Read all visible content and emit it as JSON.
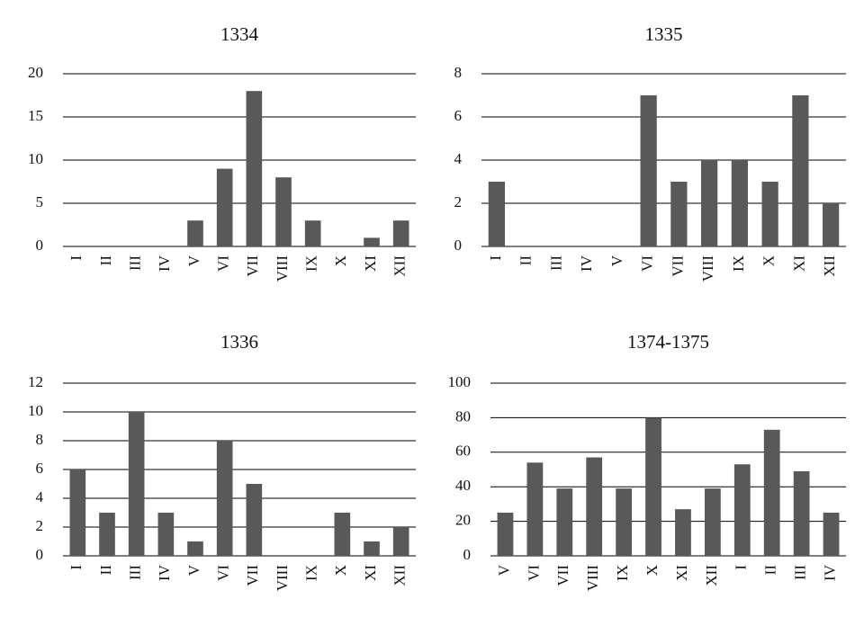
{
  "chart_data": [
    {
      "type": "bar",
      "title": "1334",
      "categories": [
        "I",
        "II",
        "III",
        "IV",
        "V",
        "VI",
        "VII",
        "VIII",
        "IX",
        "X",
        "XI",
        "XII"
      ],
      "values": [
        0,
        0,
        0,
        0,
        3,
        9,
        18,
        8,
        3,
        0,
        1,
        3
      ],
      "color": "#595959",
      "ylim": [
        0,
        20
      ],
      "yticks": [
        0,
        5,
        10,
        15,
        20
      ],
      "grid": true
    },
    {
      "type": "bar",
      "title": "1335",
      "categories": [
        "I",
        "II",
        "III",
        "IV",
        "V",
        "VI",
        "VII",
        "VIII",
        "IX",
        "X",
        "XI",
        "XII"
      ],
      "values": [
        3,
        0,
        0,
        0,
        0,
        7,
        3,
        4,
        4,
        3,
        7,
        2
      ],
      "color": "#595959",
      "ylim": [
        0,
        8
      ],
      "yticks": [
        0,
        2,
        4,
        6,
        8
      ],
      "grid": true
    },
    {
      "type": "bar",
      "title": "1336",
      "categories": [
        "I",
        "II",
        "III",
        "IV",
        "V",
        "VI",
        "VII",
        "VIII",
        "IX",
        "X",
        "XI",
        "XII"
      ],
      "values": [
        6,
        3,
        10,
        3,
        1,
        8,
        5,
        0,
        0,
        3,
        1,
        2
      ],
      "color": "#595959",
      "ylim": [
        0,
        12
      ],
      "yticks": [
        0,
        2,
        4,
        6,
        8,
        10,
        12
      ],
      "grid": true
    },
    {
      "type": "bar",
      "title": "1374-1375",
      "categories": [
        "V",
        "VI",
        "VII",
        "VIII",
        "IX",
        "X",
        "XI",
        "XII",
        "I",
        "II",
        "III",
        "IV"
      ],
      "values": [
        25,
        54,
        39,
        57,
        39,
        80,
        27,
        39,
        53,
        73,
        49,
        25
      ],
      "color": "#595959",
      "ylim": [
        0,
        100
      ],
      "yticks": [
        0,
        20,
        40,
        60,
        80,
        100
      ],
      "grid": true
    }
  ]
}
